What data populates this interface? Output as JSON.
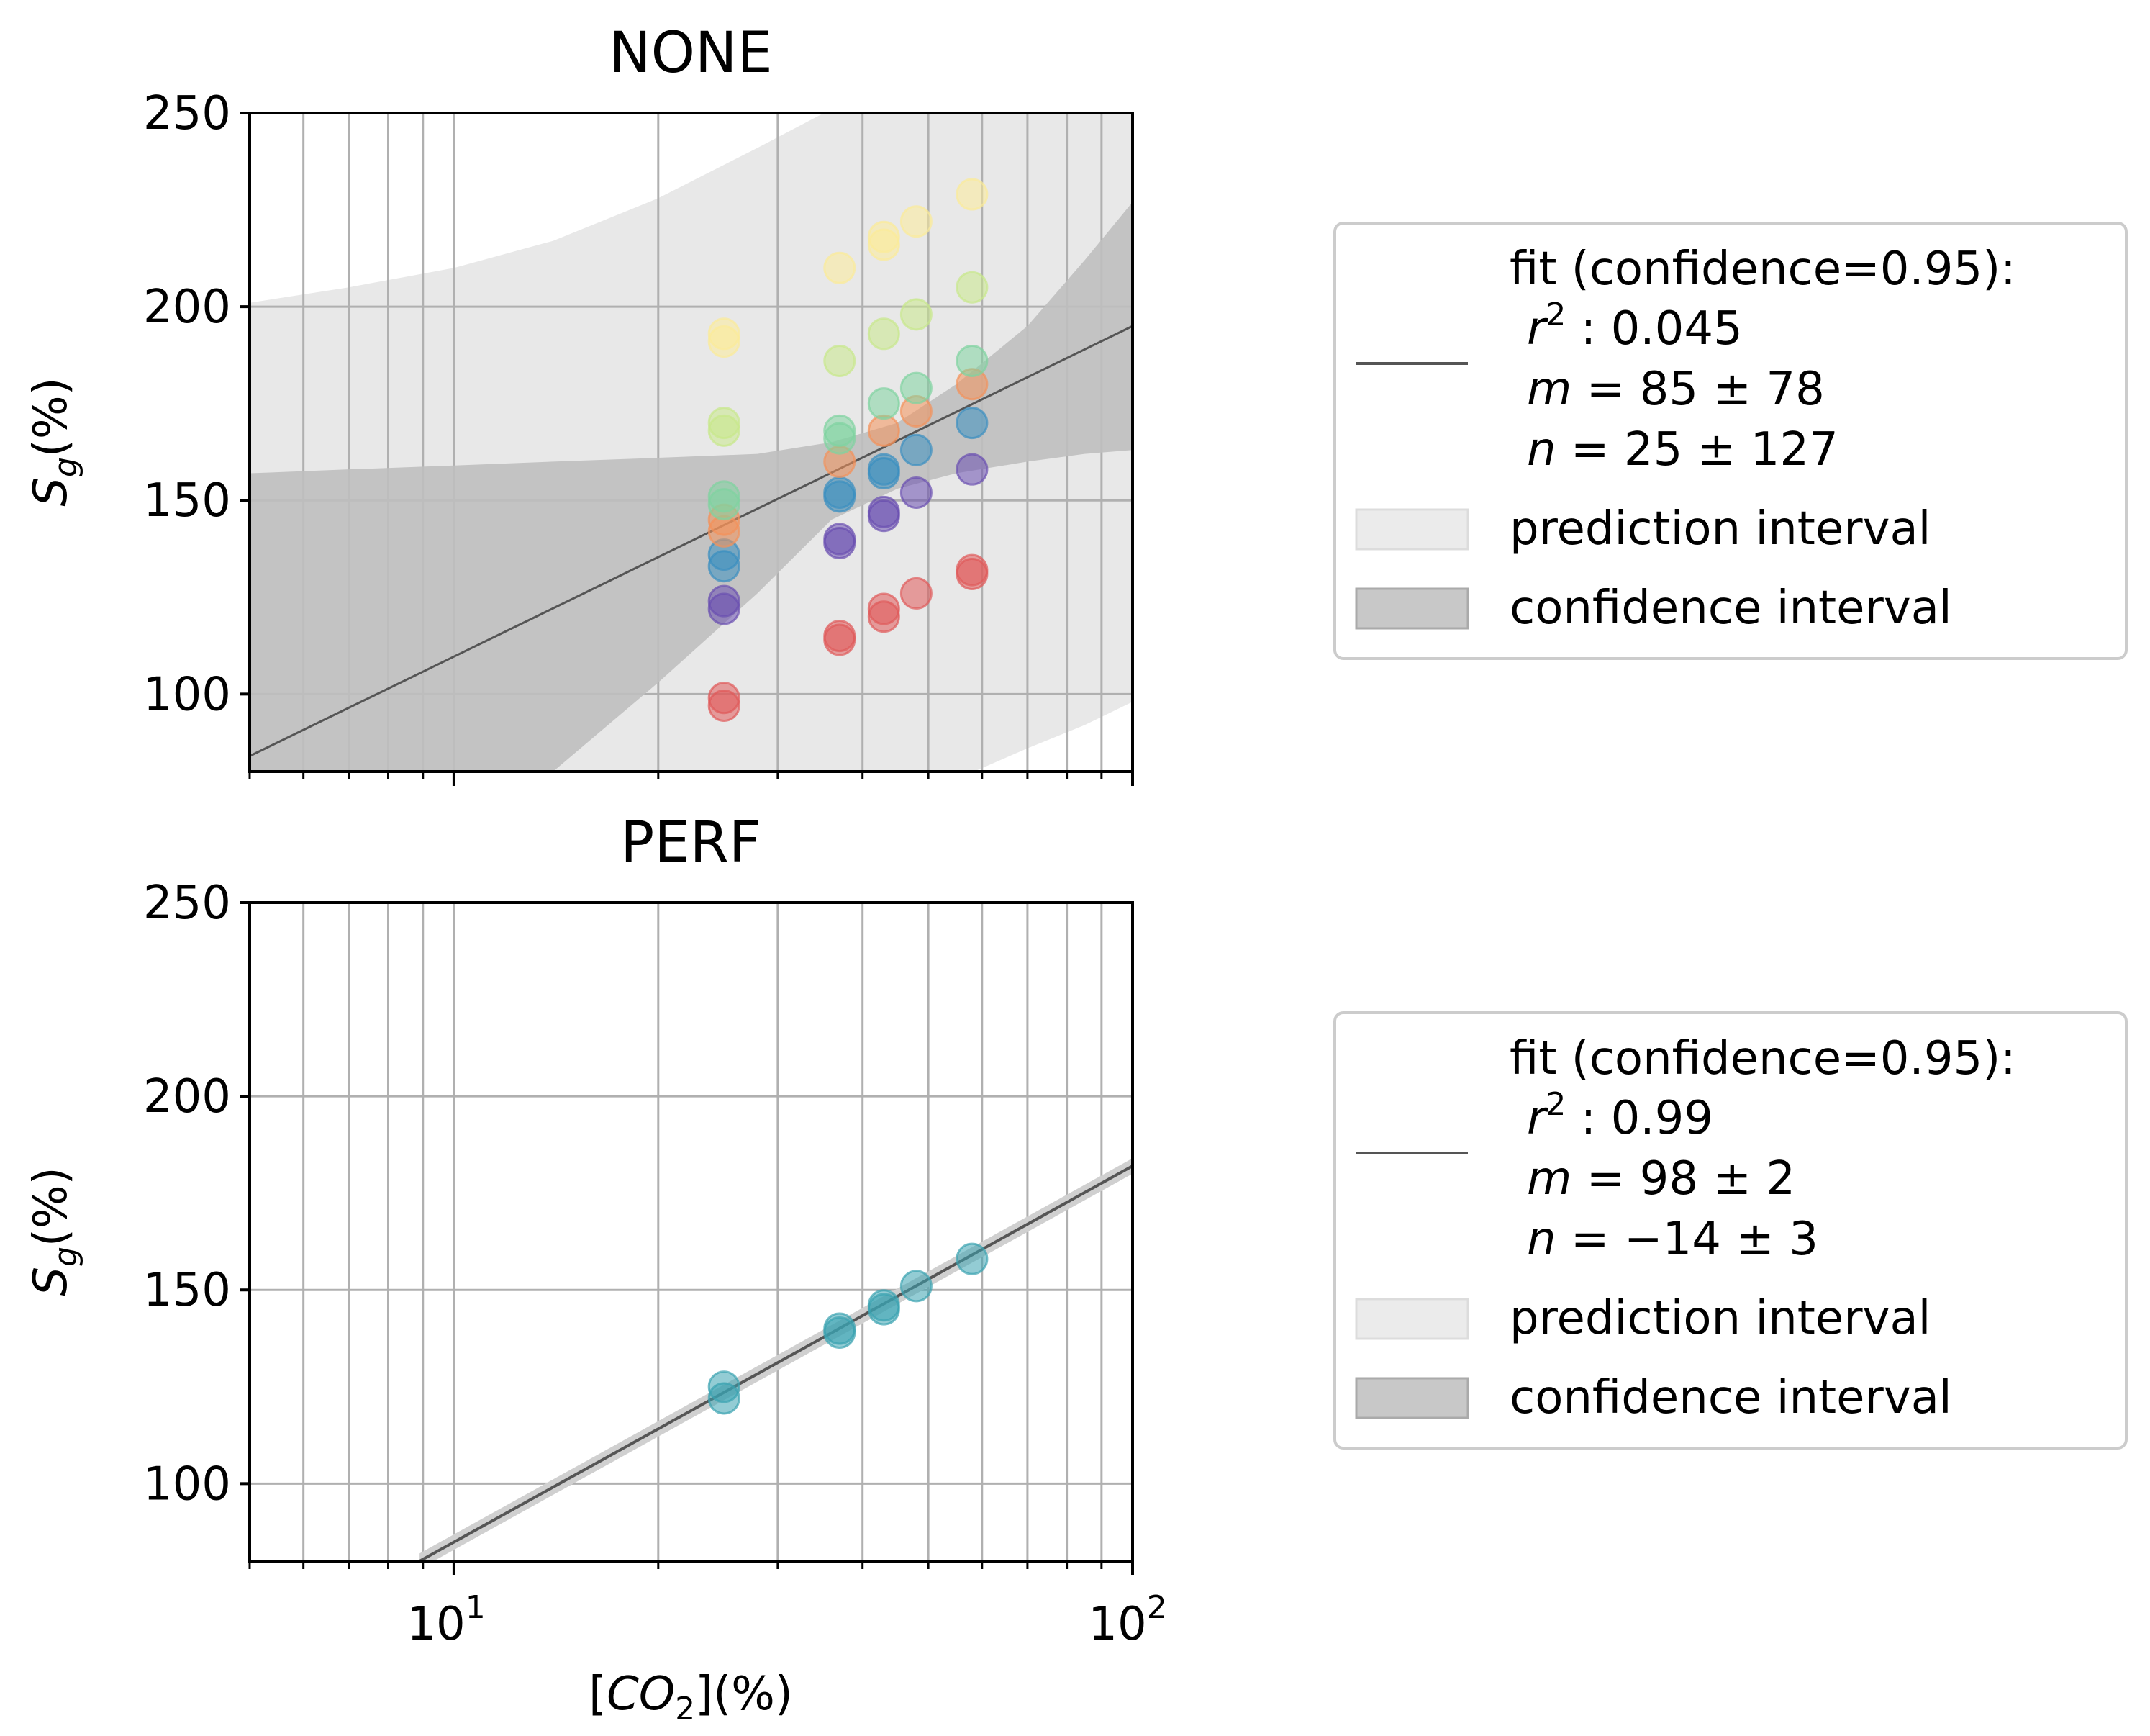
{
  "chart_data": [
    {
      "type": "scatter",
      "title": "NONE",
      "xlabel": "[CO2](%)",
      "ylabel": "S_g(%)",
      "xscale": "log",
      "xlim": [
        5,
        100
      ],
      "ylim": [
        80,
        250
      ],
      "yticks": [
        100,
        150,
        200,
        250
      ],
      "grid": true,
      "fit": {
        "m": 85,
        "n": 25,
        "x": [
          5,
          100
        ],
        "y": [
          84,
          195
        ]
      },
      "confidence_band": {
        "x": [
          5,
          7,
          10,
          14,
          20,
          28,
          36,
          45,
          55,
          70,
          85,
          100
        ],
        "upper": [
          157,
          158,
          159,
          160,
          161,
          162,
          165,
          170,
          180,
          195,
          212,
          227
        ],
        "lower": [
          35,
          52,
          68,
          80,
          103,
          126,
          145,
          153,
          157,
          160,
          162,
          163
        ]
      },
      "prediction_band": {
        "x": [
          5,
          7,
          10,
          14,
          20,
          28,
          36,
          45,
          55,
          70,
          85,
          100
        ],
        "upper": [
          201,
          205,
          210,
          217,
          228,
          241,
          251,
          262,
          276,
          290,
          302,
          312
        ],
        "lower": [
          -40,
          -28,
          -12,
          8,
          28,
          48,
          62,
          70,
          78,
          86,
          92,
          98
        ]
      },
      "series": [
        {
          "name": "red",
          "color": "#e05a5a",
          "x": [
            25,
            25,
            37,
            37,
            43,
            43,
            48,
            58,
            58
          ],
          "y": [
            97,
            99,
            114,
            115,
            120,
            122,
            126,
            131,
            132
          ]
        },
        {
          "name": "purple",
          "color": "#6a4fb0",
          "x": [
            25,
            25,
            37,
            37,
            43,
            43,
            48,
            58
          ],
          "y": [
            122,
            124,
            139,
            140,
            146,
            147,
            152,
            158
          ]
        },
        {
          "name": "blue",
          "color": "#3a8fc0",
          "x": [
            25,
            25,
            37,
            37,
            43,
            43,
            48,
            58
          ],
          "y": [
            133,
            136,
            151,
            152,
            157,
            158,
            163,
            170
          ]
        },
        {
          "name": "orange",
          "color": "#f4915a",
          "x": [
            25,
            25,
            37,
            43,
            48,
            58
          ],
          "y": [
            142,
            145,
            160,
            168,
            173,
            180
          ]
        },
        {
          "name": "green",
          "color": "#7fd3a0",
          "x": [
            25,
            25,
            37,
            37,
            43,
            48,
            58
          ],
          "y": [
            149,
            151,
            166,
            168,
            175,
            179,
            186
          ]
        },
        {
          "name": "lime",
          "color": "#c8e88a",
          "x": [
            25,
            25,
            37,
            43,
            48,
            58
          ],
          "y": [
            168,
            170,
            186,
            193,
            198,
            205
          ]
        },
        {
          "name": "yellow",
          "color": "#fbeb99",
          "x": [
            25,
            25,
            37,
            43,
            43,
            48,
            58
          ],
          "y": [
            191,
            193,
            210,
            216,
            218,
            222,
            229
          ]
        }
      ],
      "legend": {
        "fit_label": "fit (confidence=0.95):",
        "r2_prefix": "r",
        "r2_sup": "2",
        "r2_value": " : 0.045",
        "m_label": "m",
        "m_value": " = 85 ± 78",
        "n_label": "n",
        "n_value": " = 25 ± 127",
        "prediction_label": "prediction interval",
        "confidence_label": "confidence interval"
      }
    },
    {
      "type": "scatter",
      "title": "PERF",
      "xlabel": "[CO2](%)",
      "ylabel": "S_g(%)",
      "xscale": "log",
      "xlim": [
        5,
        100
      ],
      "ylim": [
        80,
        250
      ],
      "yticks": [
        100,
        150,
        200,
        250
      ],
      "xtick_labels": [
        "10",
        "1",
        "10",
        "2"
      ],
      "grid": true,
      "fit": {
        "m": 98,
        "n": -14,
        "x": [
          8.9,
          100
        ],
        "y": [
          80,
          182
        ]
      },
      "series": [
        {
          "name": "teal",
          "color": "#3aa3b0",
          "x": [
            25,
            25,
            37,
            37,
            43,
            43,
            48,
            58
          ],
          "y": [
            122,
            125,
            139,
            140,
            145,
            146,
            151,
            158
          ]
        }
      ],
      "legend": {
        "fit_label": "fit (confidence=0.95):",
        "r2_prefix": "r",
        "r2_sup": "2",
        "r2_value": " : 0.99",
        "m_label": "m",
        "m_value": " = 98 ± 2",
        "n_label": "n",
        "n_value": " = −14 ± 3",
        "prediction_label": "prediction interval",
        "confidence_label": "confidence interval"
      }
    }
  ],
  "axis_text": {
    "x_label_prefix": "[",
    "x_label_co": "CO",
    "x_label_sub": "2",
    "x_label_suffix": "](%)",
    "y_label_s": "S",
    "y_label_sub": "g",
    "y_label_suffix": "(%)",
    "xtick_base": "10",
    "xtick_exp_1": "1",
    "xtick_exp_2": "2"
  }
}
